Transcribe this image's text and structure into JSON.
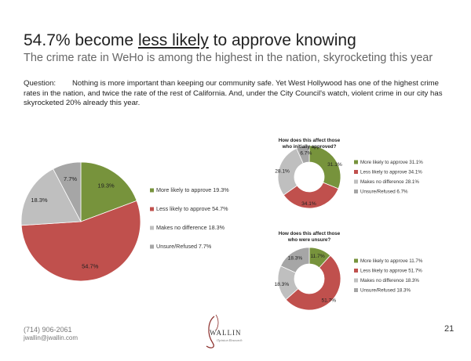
{
  "title_prefix": "54.7% become ",
  "title_underlined": "less likely",
  "title_suffix": " to approve knowing",
  "subtitle": "The crime rate in WeHo is among the highest in the nation, skyrocketing this year",
  "question_label": "Question:",
  "question_text": "Nothing is more important than keeping our community safe. Yet West Hollywood has one of the highest crime rates in the nation, and twice the rate of the rest of California. And, under the City Council's watch, violent crime in our city has skyrocketed 20% already this year.",
  "footer": {
    "phone": "(714) 906-2061",
    "email": "jwallin@jwallin.com",
    "page_number": "21",
    "logo_text": "WALLIN",
    "logo_subtext": "Opinion Research"
  },
  "chart_data": [
    {
      "type": "pie",
      "categories": [
        "More likely to approve",
        "Less likely to approve",
        "Makes no difference",
        "Unsure/Refused"
      ],
      "values": [
        19.3,
        54.7,
        18.3,
        7.7
      ],
      "slice_labels": [
        "19.3%",
        "54.7%",
        "18.3%",
        "7.7%"
      ],
      "legend": [
        "More likely to approve 19.3%",
        "Less likely to approve 54.7%",
        "Makes no difference 18.3%",
        "Unsure/Refused 7.7%"
      ],
      "colors": [
        "#77933c",
        "#c0504d",
        "#bfbfbf",
        "#a6a6a6"
      ],
      "legend_placement": "right"
    },
    {
      "type": "pie",
      "variant": "donut",
      "title": "How does this affect those who initially approved?",
      "categories": [
        "More likely to approve",
        "Less likely to approve",
        "Makes no difference",
        "Unsure/Refused"
      ],
      "values": [
        31.1,
        34.1,
        28.1,
        6.7
      ],
      "slice_labels": [
        "31.1%",
        "34.1%",
        "28.1%",
        "6.7%"
      ],
      "legend": [
        "More likely to approve 31.1%",
        "Less likely to approve 34.1%",
        "Makes no difference 28.1%",
        "Unsure/Refused 6.7%"
      ],
      "colors": [
        "#77933c",
        "#c0504d",
        "#bfbfbf",
        "#a6a6a6"
      ],
      "legend_placement": "right"
    },
    {
      "type": "pie",
      "variant": "donut",
      "title": "How does this affect those who were unsure?",
      "categories": [
        "More likely to approve",
        "Less likely to approve",
        "Makes no difference",
        "Unsure/Refused"
      ],
      "values": [
        11.7,
        51.7,
        18.3,
        18.3
      ],
      "slice_labels": [
        "11.7%",
        "51.7%",
        "18.3%",
        "18.3%"
      ],
      "legend": [
        "More likely to approve 11.7%",
        "Less likely to approve 51.7%",
        "Makes no difference 18.3%",
        "Unsure/Refused 18.3%"
      ],
      "colors": [
        "#77933c",
        "#c0504d",
        "#bfbfbf",
        "#a6a6a6"
      ],
      "legend_placement": "right"
    }
  ]
}
